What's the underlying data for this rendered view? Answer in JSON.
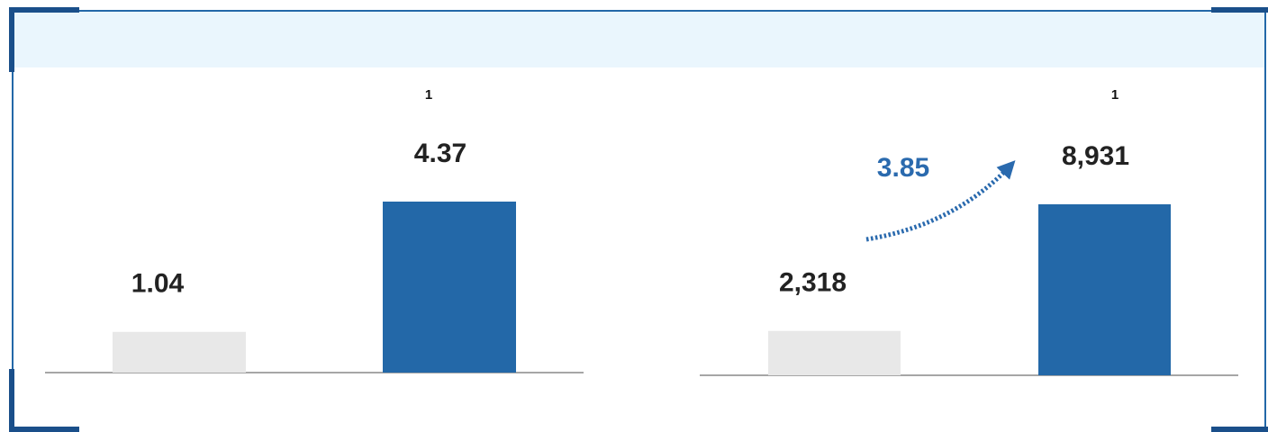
{
  "chart_data": [
    {
      "type": "bar",
      "categories": [
        null,
        null
      ],
      "values": [
        1.04,
        4.37
      ],
      "colors": [
        "#e8e8e8",
        "#2368a8"
      ],
      "footnote": "1"
    },
    {
      "type": "bar",
      "categories": [
        null,
        null
      ],
      "values": [
        2318,
        8931
      ],
      "value_labels": [
        "2,318",
        "8,931"
      ],
      "colors": [
        "#e8e8e8",
        "#2368a8"
      ],
      "footnote": "1",
      "annotation": "3.85"
    }
  ]
}
